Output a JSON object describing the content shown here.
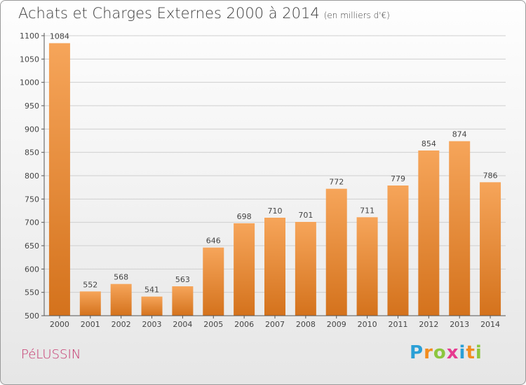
{
  "title": "Achats et Charges Externes 2000 à 2014",
  "subtitle": "(en milliers d'€)",
  "commune": "PéLUSSIN",
  "logo": {
    "text": "Proxiti",
    "letters": [
      "P",
      "r",
      "o",
      "x",
      "i",
      "t",
      "i"
    ],
    "colors": [
      "#2a9fd6",
      "#f28c1e",
      "#8cc63f",
      "#e63a8f",
      "#2a9fd6",
      "#f28c1e",
      "#8cc63f"
    ]
  },
  "colors": {
    "bar_light": "#f6a55a",
    "bar_dark": "#d4721c",
    "grid": "#cfcfcf",
    "axis": "#555555",
    "label": "#444444"
  },
  "chart_data": {
    "type": "bar",
    "title": "Achats et Charges Externes 2000 à 2014",
    "subtitle": "(en milliers d'€)",
    "categories": [
      "2000",
      "2001",
      "2002",
      "2003",
      "2004",
      "2005",
      "2006",
      "2007",
      "2008",
      "2009",
      "2010",
      "2011",
      "2012",
      "2013",
      "2014"
    ],
    "values": [
      1084,
      552,
      568,
      541,
      563,
      646,
      698,
      710,
      701,
      772,
      711,
      779,
      854,
      874,
      786
    ],
    "ylim": [
      500,
      1100
    ],
    "yticks": [
      500,
      550,
      600,
      650,
      700,
      750,
      800,
      850,
      900,
      950,
      1000,
      1050,
      1100
    ],
    "grid": true,
    "data_labels": true
  }
}
